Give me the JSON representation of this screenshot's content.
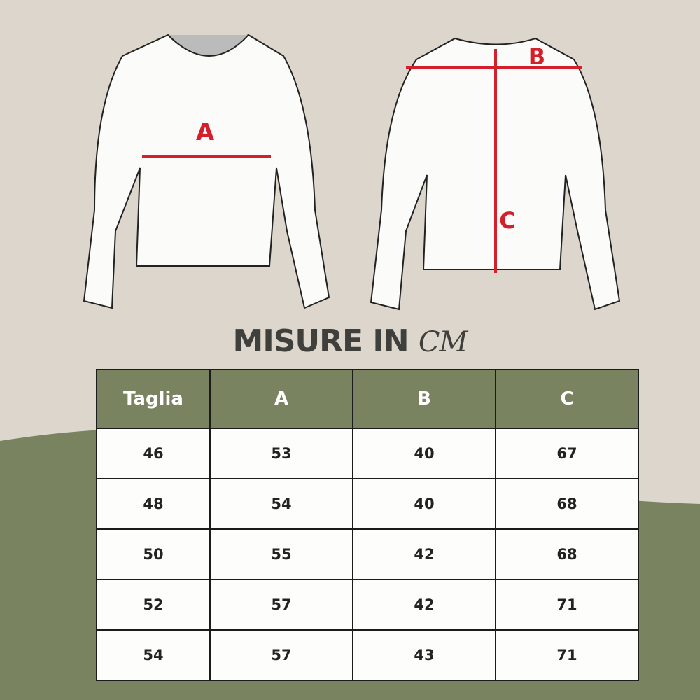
{
  "colors": {
    "background": "#dcd6cd",
    "accent_green": "#79835f",
    "measure_red": "#d3202a"
  },
  "diagram": {
    "front_label": "A",
    "back_labels": [
      "B",
      "C"
    ]
  },
  "title": {
    "text": "MISURE IN",
    "unit": "CM"
  },
  "table": {
    "headers": [
      "Taglia",
      "A",
      "B",
      "C"
    ],
    "rows": [
      [
        "46",
        "53",
        "40",
        "67"
      ],
      [
        "48",
        "54",
        "40",
        "68"
      ],
      [
        "50",
        "55",
        "42",
        "68"
      ],
      [
        "52",
        "57",
        "42",
        "71"
      ],
      [
        "54",
        "57",
        "43",
        "71"
      ]
    ]
  }
}
